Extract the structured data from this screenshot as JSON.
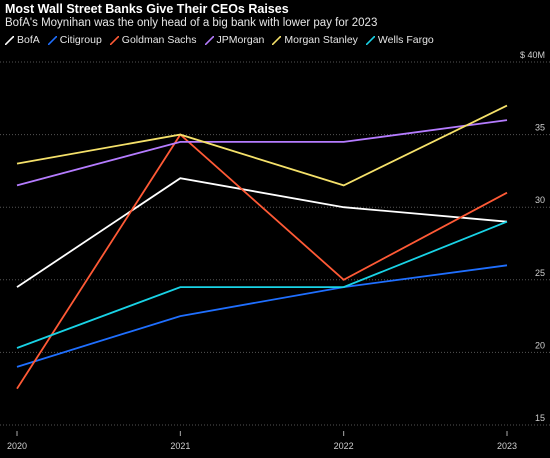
{
  "chart_data": {
    "type": "line",
    "title": "Most Wall Street Banks Give Their CEOs Raises",
    "subtitle": "BofA's Moynihan was the only head of a big bank with lower pay for 2023",
    "x": [
      "2020",
      "2021",
      "2022",
      "2023"
    ],
    "y_unit_label": "$ 40M",
    "ylim": [
      15,
      40
    ],
    "yticks": [
      15,
      20,
      25,
      30,
      35,
      40
    ],
    "ytick_labels": [
      "15",
      "20",
      "25",
      "30",
      "35",
      "$ 40M"
    ],
    "grid": "horizontal-dotted",
    "legend_position": "top-left",
    "series": [
      {
        "name": "BofA",
        "color": "#ffffff",
        "values": [
          24.5,
          32,
          30,
          29
        ]
      },
      {
        "name": "Citigroup",
        "color": "#1f6fff",
        "values": [
          19,
          22.5,
          24.5,
          26
        ]
      },
      {
        "name": "Goldman Sachs",
        "color": "#ff5a36",
        "values": [
          17.5,
          35,
          25,
          31
        ]
      },
      {
        "name": "JPMorgan",
        "color": "#b57cff",
        "values": [
          31.5,
          34.5,
          34.5,
          36
        ]
      },
      {
        "name": "Morgan Stanley",
        "color": "#f5e16a",
        "values": [
          33,
          35,
          31.5,
          37
        ]
      },
      {
        "name": "Wells Fargo",
        "color": "#19d3e6",
        "values": [
          20.3,
          24.5,
          24.5,
          29
        ]
      }
    ]
  }
}
